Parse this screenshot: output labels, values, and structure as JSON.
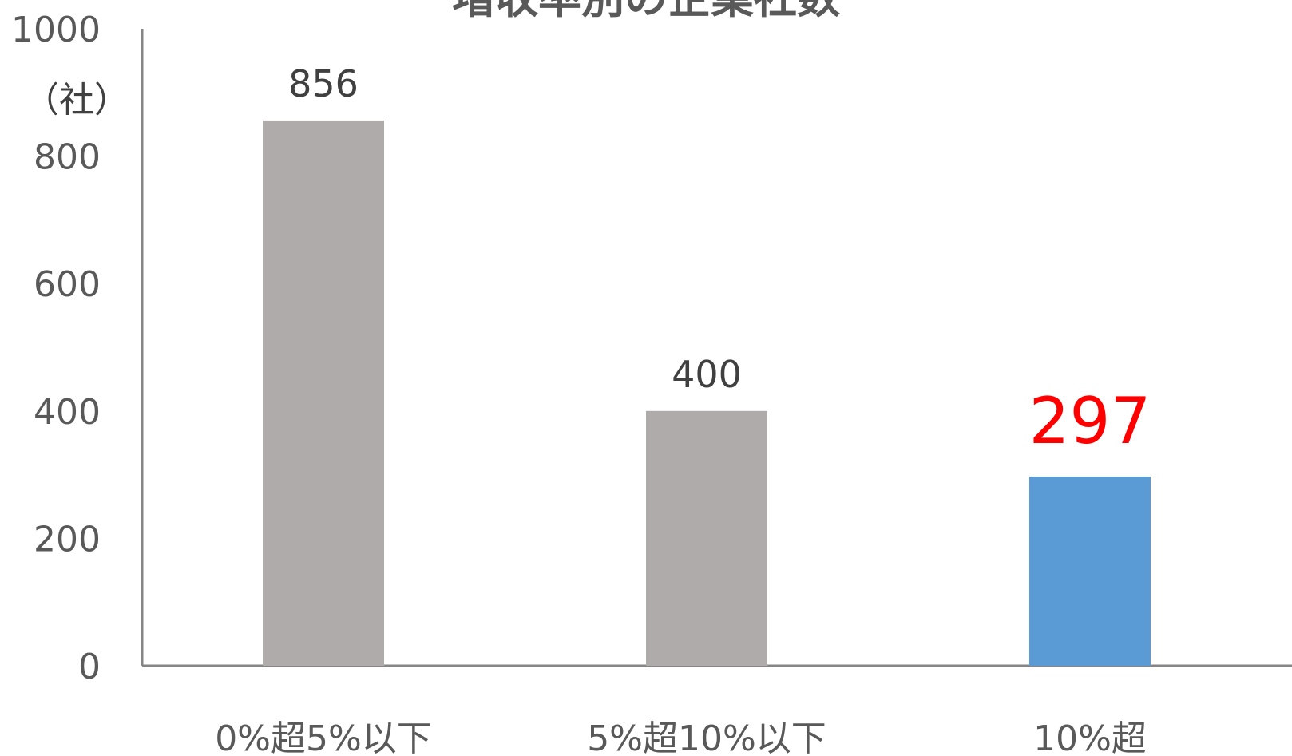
{
  "chart_data": {
    "type": "bar",
    "title": "増収率別の企業社数",
    "unit_label": "（社）",
    "categories": [
      "0%超5%以下",
      "5%超10%以下",
      "10%超"
    ],
    "values": [
      856,
      400,
      297
    ],
    "value_labels": [
      "856",
      "400",
      "297"
    ],
    "ylim": [
      0,
      1000
    ],
    "yticks": [
      "0",
      "200",
      "400",
      "600",
      "800",
      "1000"
    ],
    "ytick_values": [
      0,
      200,
      400,
      600,
      800,
      1000
    ],
    "grid": false,
    "legend": "none",
    "colors": {
      "default_bar": "#afabaa",
      "highlight_bar": "#5b9bd5",
      "highlight_label": "#ff0000",
      "axis": "#868686"
    },
    "highlight_index": 2
  }
}
